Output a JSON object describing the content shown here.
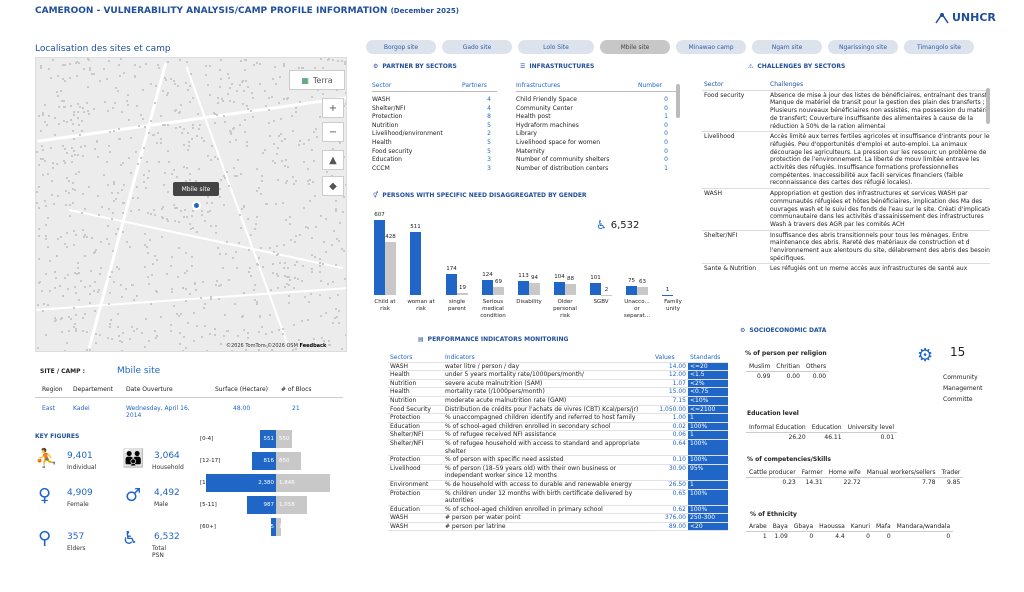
{
  "title": "CAMEROON - VULNERABILITY ANALYSIS/CAMP PROFILE INFORMATION",
  "title_date": "(December 2025)",
  "subtitle": "Localisation des sites et camp",
  "logo": "UNHCR",
  "tabs": [
    "Borgop site",
    "Gado site",
    "Lolo Site",
    "Mbile site",
    "Minawao camp",
    "Ngam site",
    "Ngarissingo site",
    "Timangolo site"
  ],
  "active_tab": "Mbile site",
  "map": {
    "layer_button": "Terra",
    "pin_label": "Mbile site",
    "attribution": "©2026 TomTom ©2026 OSM",
    "feedback": "Feedback",
    "zoom_in": "+",
    "zoom_out": "−"
  },
  "site": {
    "label": "SITE / CAMP :",
    "name": "Mbile site",
    "headers": [
      "Region",
      "Departement",
      "Date Ouverture",
      "Surface (Hectare)",
      "# of Blocs"
    ],
    "values": [
      "East",
      "Kadei",
      "Wednesday, April 16, 2014",
      "48.00",
      "21"
    ]
  },
  "key_figures": {
    "title": "KEY FIGURES",
    "items": [
      {
        "value": "9,401",
        "label": "Individual",
        "icon": "people-group-icon"
      },
      {
        "value": "3,064",
        "label": "Household",
        "icon": "family-icon"
      },
      {
        "value": "4,909",
        "label": "Female",
        "icon": "female-icon"
      },
      {
        "value": "4,492",
        "label": "Male",
        "icon": "male-icon"
      },
      {
        "value": "357",
        "label": "Elders",
        "icon": "elder-icon"
      },
      {
        "value": "6,532",
        "label": "Total PSN",
        "icon": "wheelchair-icon"
      }
    ]
  },
  "pyramid": {
    "groups": [
      {
        "label": "[0-4]",
        "female": 551,
        "male": 550,
        "female_label": "551",
        "male_label": "550"
      },
      {
        "label": "[12-17]",
        "female": 816,
        "male": 850,
        "female_label": "816",
        "male_label": "850"
      },
      {
        "label": "[18-59]",
        "female": 2380,
        "male": 1846,
        "female_label": "2,380",
        "male_label": "1,846"
      },
      {
        "label": "[5-11]",
        "female": 987,
        "male": 1058,
        "female_label": "987",
        "male_label": "1,058"
      },
      {
        "label": "[60+]",
        "female": 175,
        "male": 182,
        "female_label": "175",
        "male_label": "182"
      }
    ]
  },
  "partners": {
    "title": "PARTNER BY SECTORS",
    "col1": "Sector",
    "col2": "Partners",
    "rows": [
      [
        "WASH",
        "4"
      ],
      [
        "Shelter/NFI",
        "4"
      ],
      [
        "Protection",
        "8"
      ],
      [
        "Nutrition",
        "5"
      ],
      [
        "Livelihood/environment",
        "2"
      ],
      [
        "Health",
        "5"
      ],
      [
        "Food security",
        "5"
      ],
      [
        "Education",
        "3"
      ],
      [
        "CCCM",
        "3"
      ]
    ]
  },
  "infra": {
    "title": "INFRASTRUCTURES",
    "col1": "Infrastructures",
    "col2": "Number",
    "rows": [
      [
        "Child Friendly Space",
        "0"
      ],
      [
        "Community Center",
        "0"
      ],
      [
        "Health post",
        "1"
      ],
      [
        "Hydraform machines",
        "0"
      ],
      [
        "Library",
        "0"
      ],
      [
        "Livelihood space for women",
        "0"
      ],
      [
        "Maternity",
        "0"
      ],
      [
        "Number of community shelters",
        "0"
      ],
      [
        "Number of distribution centers",
        "1"
      ]
    ]
  },
  "psn": {
    "title": "PERSONS WITH SPECIFIC NEED DISAGGREGATED BY GENDER",
    "total": "6,532",
    "chart_data": {
      "type": "bar",
      "categories": [
        "Child at risk",
        "woman at risk",
        "single parent",
        "Serious medical condition",
        "Disability",
        "Older personal risk",
        "SGBV",
        "Unacco... or separat...",
        "Family unity"
      ],
      "series": [
        {
          "values": [
            607,
            511,
            174,
            124,
            113,
            104,
            101,
            75,
            1
          ]
        },
        {
          "values": [
            428,
            0,
            19,
            69,
            94,
            88,
            2,
            63,
            0
          ]
        }
      ],
      "labels1": [
        "607",
        "511",
        "174",
        "124",
        "113",
        "104",
        "101",
        "75",
        "1"
      ],
      "labels2": [
        "428",
        "",
        "19",
        "69",
        "94",
        "88",
        "2",
        "63",
        ""
      ],
      "ylim": [
        0,
        650
      ]
    }
  },
  "perf": {
    "title": "PERFORMANCE INDICATORS MONITORING",
    "headers": [
      "Sectors",
      "Indicators",
      "Values",
      "Standards"
    ],
    "rows": [
      [
        "WASH",
        "water litre / person / day",
        "14.00",
        "<=20"
      ],
      [
        "Health",
        "under 5 years mortality rate/1000pers/month/",
        "12.00",
        "<1.5"
      ],
      [
        "Nutrition",
        "severe acute malnutrition (SAM)",
        "1.07",
        "<2%"
      ],
      [
        "Health",
        "mortality rate (/1000pers/month)",
        "15.00",
        "<0.75"
      ],
      [
        "Nutrition",
        "moderate acute malnutrition rate (GAM)",
        "7.15",
        "<10%"
      ],
      [
        "Food Security",
        "Distribution de crédits pour l'achats de vivres (CBT) Kcal/pers/jr)",
        "1,050.00",
        "<=2100"
      ],
      [
        "Protection",
        "% unaccompagned children identify and referred to host family",
        "1.00",
        "1"
      ],
      [
        "Education",
        "% of school-aged children enrolled in secondary school",
        "0.02",
        "100%"
      ],
      [
        "Shelter/NFI",
        "% of refugee received NFI assistance",
        "0.06",
        "1"
      ],
      [
        "Shelter/NFI",
        "% of refugee household with access to standard and appropriate shelter",
        "0.64",
        "100%"
      ],
      [
        "Protection",
        "% of person with specific need assisted",
        "0.10",
        "100%"
      ],
      [
        "Livelihood",
        "% of person (18–59 years old) with their own business or independant worker since 12 months",
        "30.90",
        "95%"
      ],
      [
        "Environment",
        "% de household with access to durable and renewable energy",
        "26.50",
        "1"
      ],
      [
        "Protection",
        "% children under 12 months with birth certificate delivered by autorities",
        "0.65",
        "100%"
      ],
      [
        "Education",
        "% of school-aged children enrolled in primary school",
        "0.62",
        "100%"
      ],
      [
        "WASH",
        "# person per water point",
        "376.00",
        "250-300"
      ],
      [
        "WASH",
        "# person per latrine",
        "89.00",
        "<20"
      ]
    ]
  },
  "challenges": {
    "title": "CHALLENGES BY SECTORS",
    "col1": "Sector",
    "col2": "Challenges",
    "rows": [
      [
        "Food security",
        "Absence de mise à jour des listes de bénéficiaires, entraînant des transfert ; Manque de matériel de transit pour la gestion des plain des transferts ; Plusieurs nouveaux bénéficiaires non assistés, ma possession du matériel de transfert; Couverture insuffisante des alimentaires à cause de la réduction à 50% de la ration alimentai"
      ],
      [
        "Livelihood",
        "Accès limité aux terres fertiles agricoles et insuffisance d'intrants pour les réfugiés. Peu d'opportunités d'emploi et auto-emploi. La animaux décourage les agriculteurs. La pression sur les ressourc un problème de protection de l'environnement. La liberté de mouv limitée entrave les activités des réfugiés. Insuffisance formations professionnelles compétentes. Inaccessibilité aux facili services financiers (faible reconnaissance des cartes des réfugié locales)."
      ],
      [
        "WASH",
        "Appropriation et gestion des infrastructures et services WASH par communautés réfugiées et hôtes bénéficiaires, implication des Ma des ouvrages wash et le suivi des fonds de l'eau sur le site. Créati d'implication communautaire dans les activités d'assainissement des infrastructures Wash à travers des AGR par les comités ACH"
      ],
      [
        "Shelter/NFI",
        "Insuffisance des abris transitionnels pour tous les ménages. Entre maintenance des abris. Rareté des matériaux de construction et d l'environnement aux alentours du site, délabrement des abris des besoins spécifiques."
      ],
      [
        "Sante & Nutrition",
        "Les réfugiés ont un meme accès aux infrastructures de santé aux"
      ]
    ]
  },
  "socio": {
    "title": "SOCIOECONOMIC DATA",
    "committee_value": "15",
    "committee_label": "Community Management Committe",
    "religion": {
      "title": "% of person per religion",
      "headers": [
        "Muslim",
        "Chritian",
        "Others"
      ],
      "values": [
        "0.99",
        "0.00",
        "0.00"
      ]
    },
    "education": {
      "title": "Education level",
      "headers": [
        "Informal Education",
        "Education",
        "University level"
      ],
      "values": [
        "26.20",
        "46.11",
        "0.01"
      ]
    },
    "skills": {
      "title": "% of competencies/Skills",
      "headers": [
        "Cattle producer",
        "Farmer",
        "Home wife",
        "Manual workers/sellers",
        "Trader"
      ],
      "values": [
        "0.23",
        "14.31",
        "22.72",
        "7.78",
        "9.85"
      ]
    },
    "ethnicity": {
      "title": "% of Ethnicity",
      "headers": [
        "Arabe",
        "Baya",
        "Gbaya",
        "Haoussa",
        "Kanuri",
        "Mafa",
        "Mandara/wandala"
      ],
      "values": [
        "1",
        "1.09",
        "0",
        "4.4",
        "0",
        "0",
        "0"
      ]
    }
  }
}
